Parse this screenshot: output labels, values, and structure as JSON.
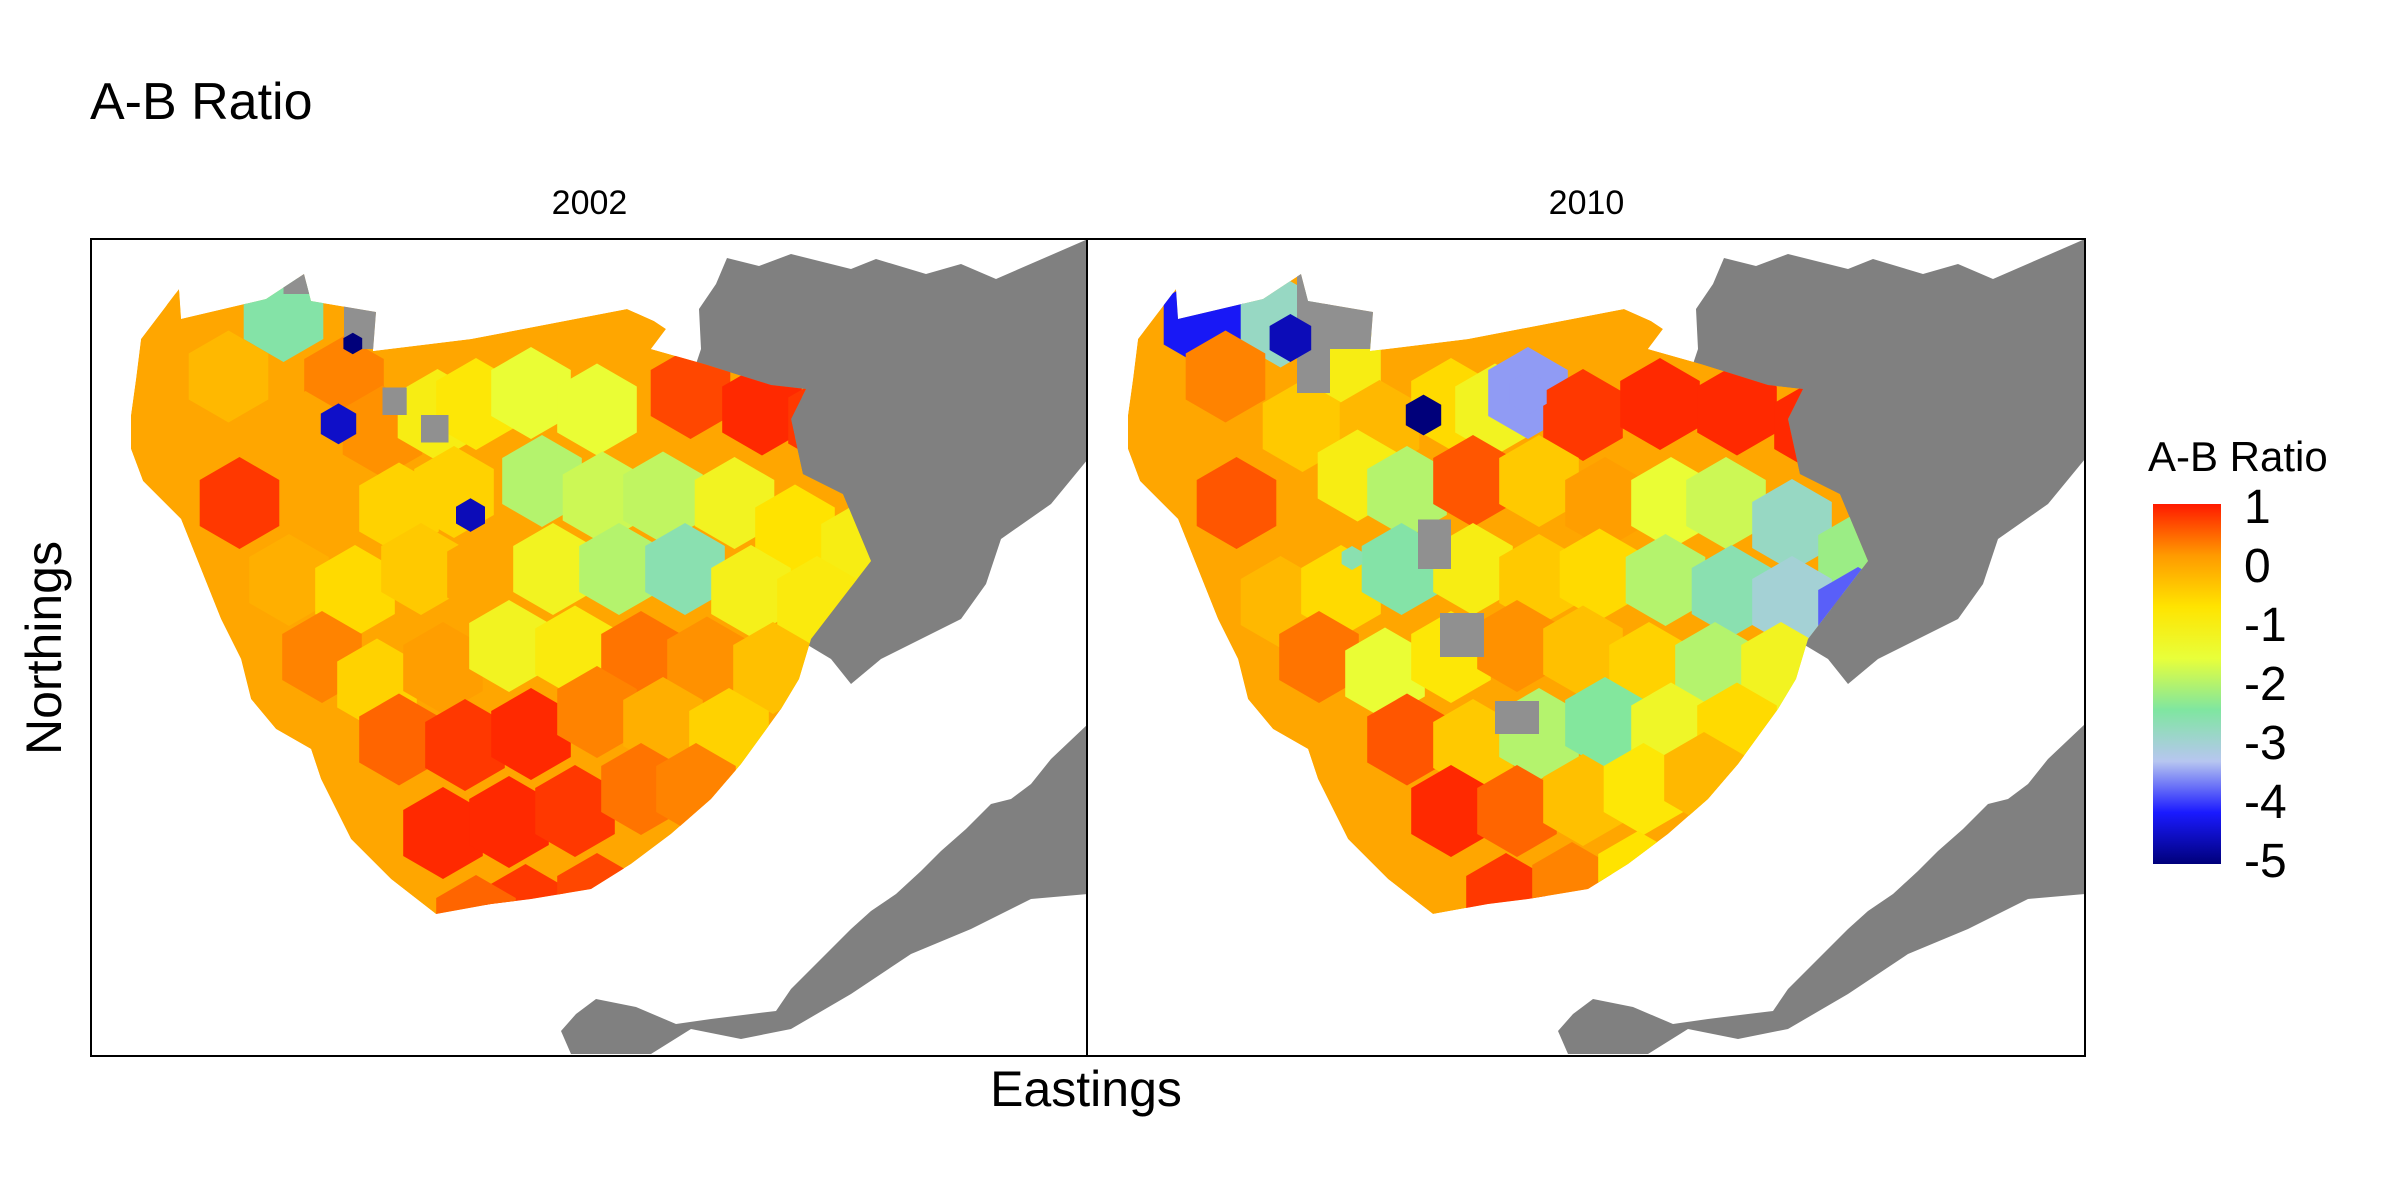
{
  "title": "A-B Ratio",
  "x_axis_label": "Eastings",
  "y_axis_label": "Northings",
  "facets": [
    {
      "label": "2002"
    },
    {
      "label": "2010"
    }
  ],
  "legend": {
    "title": "A-B Ratio",
    "ticks": [
      "1",
      "0",
      "-1",
      "-2",
      "-3",
      "-4",
      "-5"
    ],
    "range": [
      -5,
      1
    ],
    "colors_low_to_high": [
      "#00007a",
      "#1a1aff",
      "#b7c6f0",
      "#7fe6a0",
      "#e8ff3a",
      "#ffe400",
      "#ff9a00",
      "#ff1a00"
    ]
  },
  "colors": {
    "land": "#808080",
    "missing_cell": "#909090",
    "panel_background": "#ffffff",
    "frame": "#000000"
  },
  "chart_data": {
    "type": "heatmap",
    "title": "A-B Ratio",
    "xlabel": "Eastings",
    "ylabel": "Northings",
    "color_scale": {
      "title": "A-B Ratio",
      "min": -5,
      "max": 1,
      "palette": "blue-yellow-red"
    },
    "facets": [
      {
        "name": "2002",
        "notable_cells": [
          {
            "region": "north-west edge",
            "value": 0
          },
          {
            "region": "northern block",
            "value": "NA"
          },
          {
            "region": "northern block",
            "value": -4.8
          },
          {
            "region": "north-west",
            "value": -2.5
          },
          {
            "region": "central-north",
            "value": -1
          },
          {
            "region": "central",
            "value": -4.3
          },
          {
            "region": "central-east",
            "value": -2.5
          },
          {
            "region": "north-east shelf",
            "value": 0.8
          },
          {
            "region": "south-east",
            "value": 0.9
          },
          {
            "region": "south-east coast",
            "value": -0.7
          }
        ]
      },
      {
        "name": "2010",
        "notable_cells": [
          {
            "region": "north-west",
            "value": -4.2
          },
          {
            "region": "northern block",
            "value": "NA"
          },
          {
            "region": "north-central",
            "value": -3.5
          },
          {
            "region": "central-west",
            "value": -5
          },
          {
            "region": "central",
            "value": "NA"
          },
          {
            "region": "north-east shelf",
            "value": 0.9
          },
          {
            "region": "central-east",
            "value": -2.6
          },
          {
            "region": "east",
            "value": -3.8
          },
          {
            "region": "east coast",
            "value": -5
          },
          {
            "region": "south",
            "value": 0.8
          }
        ]
      }
    ]
  }
}
